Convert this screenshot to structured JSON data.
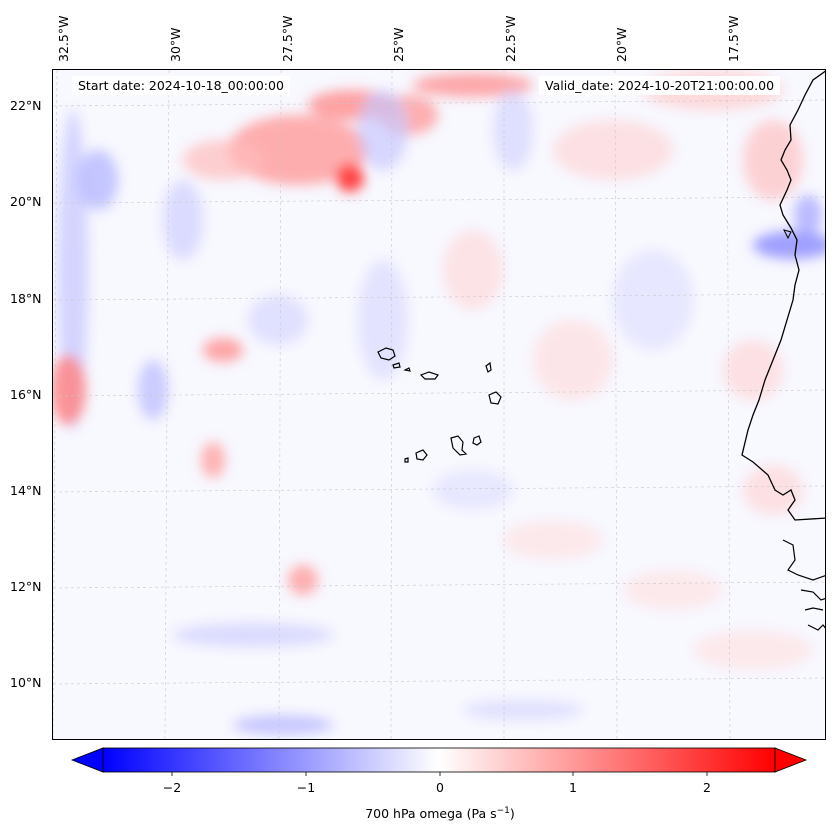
{
  "map": {
    "start_date": "Start date: 2024-10-18_00:00:00",
    "valid_date": "Valid_date: 2024-10-20T21:00:00.00",
    "lon_labels": [
      "32.5°W",
      "30°W",
      "27.5°W",
      "25°W",
      "22.5°W",
      "20°W",
      "17.5°W"
    ],
    "lat_labels": [
      "22°N",
      "20°N",
      "18°N",
      "16°N",
      "14°N",
      "12°N",
      "10°N"
    ],
    "variable": "700 hPa omega",
    "units_prefix": "700 hPa omega (Pa s",
    "units_sup": "−1",
    "units_suffix": ")"
  },
  "colorbar": {
    "ticks": [
      "−2",
      "−1",
      "0",
      "1",
      "2"
    ],
    "range": [
      -2.7,
      2.7
    ],
    "colors": {
      "negative": "#0000ff",
      "zero": "#ffffff",
      "positive": "#ff0000"
    }
  },
  "features": {
    "coastline": "West African coast",
    "islands": "Cape Verde"
  }
}
